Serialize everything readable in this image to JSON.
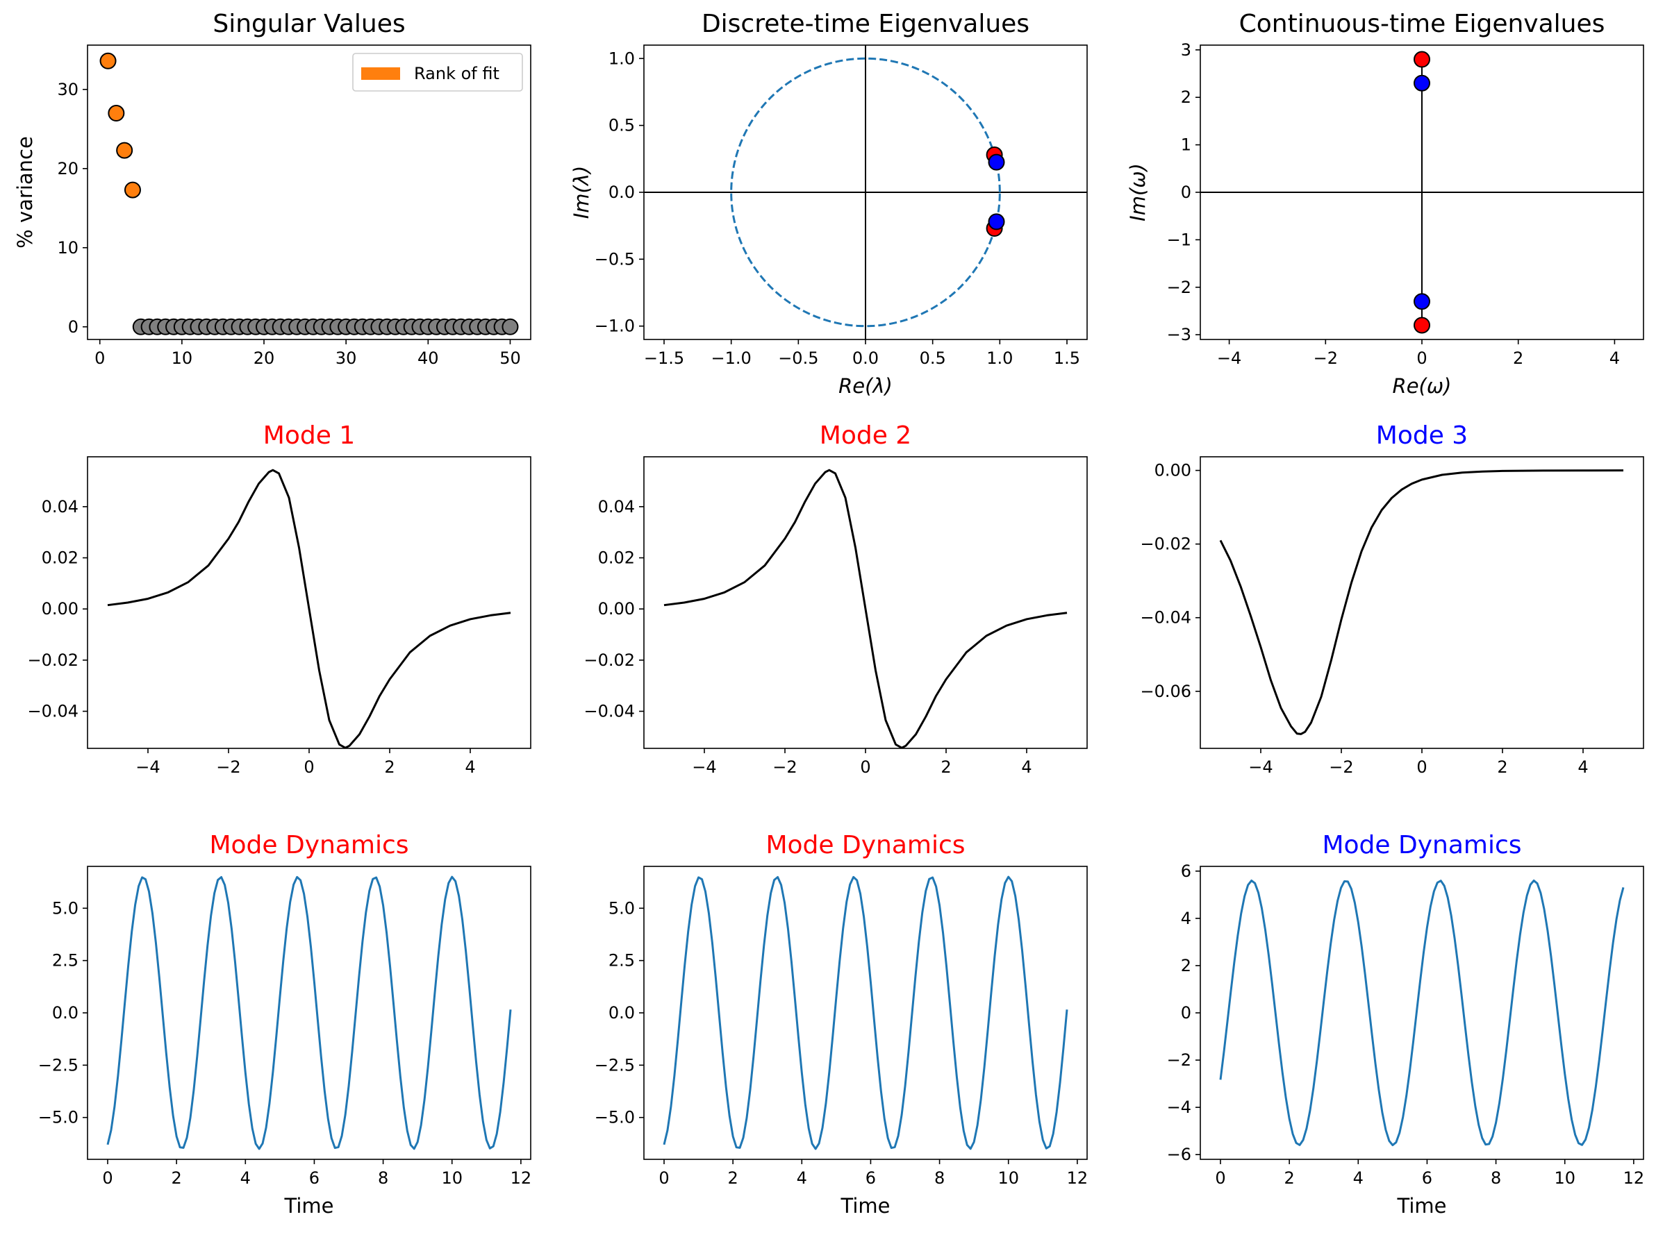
{
  "colors": {
    "orange": "#ff7f0e",
    "gray": "#808080",
    "red": "#ff0000",
    "blue": "#0000ff",
    "line_blue": "#1f77b4",
    "black": "#000000"
  },
  "chart_data": [
    {
      "id": "singular-values",
      "type": "scatter",
      "title": "Singular Values",
      "title_color": "#000000",
      "xlabel": "",
      "ylabel": "% variance",
      "xlim": [
        -1.5,
        52.5
      ],
      "ylim": [
        -1.6,
        35.6
      ],
      "xticks": [
        0,
        10,
        20,
        30,
        40,
        50
      ],
      "yticks": [
        0,
        10,
        20,
        30
      ],
      "legend": {
        "label": "Rank of fit",
        "placement": "upper right",
        "color": "#ff7f0e"
      },
      "series": [
        {
          "name": "rank-of-fit",
          "color": "#ff7f0e",
          "x": [
            1,
            2,
            3,
            4
          ],
          "y": [
            33.6,
            27.0,
            22.3,
            17.3
          ]
        },
        {
          "name": "remaining",
          "color": "#808080",
          "x": [
            5,
            6,
            7,
            8,
            9,
            10,
            11,
            12,
            13,
            14,
            15,
            16,
            17,
            18,
            19,
            20,
            21,
            22,
            23,
            24,
            25,
            26,
            27,
            28,
            29,
            30,
            31,
            32,
            33,
            34,
            35,
            36,
            37,
            38,
            39,
            40,
            41,
            42,
            43,
            44,
            45,
            46,
            47,
            48,
            49,
            50
          ],
          "y": [
            0,
            0,
            0,
            0,
            0,
            0,
            0,
            0,
            0,
            0,
            0,
            0,
            0,
            0,
            0,
            0,
            0,
            0,
            0,
            0,
            0,
            0,
            0,
            0,
            0,
            0,
            0,
            0,
            0,
            0,
            0,
            0,
            0,
            0,
            0,
            0,
            0,
            0,
            0,
            0,
            0,
            0,
            0,
            0,
            0,
            0
          ]
        }
      ]
    },
    {
      "id": "discrete-eigenvalues",
      "type": "scatter",
      "title": "Discrete-time Eigenvalues",
      "title_color": "#000000",
      "xlabel": "Re(λ)",
      "ylabel": "Im(λ)",
      "xlim": [
        -1.65,
        1.65
      ],
      "ylim": [
        -1.1,
        1.1
      ],
      "xticks": [
        -1.5,
        -1.0,
        -0.5,
        0.0,
        0.5,
        1.0,
        1.5
      ],
      "xtick_labels": [
        "−1.5",
        "−1.0",
        "−0.5",
        "0.0",
        "0.5",
        "1.0",
        "1.5"
      ],
      "yticks": [
        -1.0,
        -0.5,
        0.0,
        0.5,
        1.0
      ],
      "ytick_labels": [
        "−1.0",
        "−0.5",
        "0.0",
        "0.5",
        "1.0"
      ],
      "unit_circle": true,
      "series": [
        {
          "name": "modes-1-2",
          "color": "#ff0000",
          "x": [
            0.96,
            0.96
          ],
          "y": [
            0.28,
            -0.27
          ]
        },
        {
          "name": "mode-3",
          "color": "#0000ff",
          "x": [
            0.975,
            0.975
          ],
          "y": [
            0.225,
            -0.22
          ]
        }
      ]
    },
    {
      "id": "continuous-eigenvalues",
      "type": "scatter",
      "title": "Continuous-time Eigenvalues",
      "title_color": "#000000",
      "xlabel": "Re(ω)",
      "ylabel": "Im(ω)",
      "xlim": [
        -4.6,
        4.6
      ],
      "ylim": [
        -3.1,
        3.1
      ],
      "xticks": [
        -4,
        -2,
        0,
        2,
        4
      ],
      "xtick_labels": [
        "−4",
        "−2",
        "0",
        "2",
        "4"
      ],
      "yticks": [
        -3,
        -2,
        -1,
        0,
        1,
        2,
        3
      ],
      "ytick_labels": [
        "−3",
        "−2",
        "−1",
        "0",
        "1",
        "2",
        "3"
      ],
      "series": [
        {
          "name": "modes-1-2",
          "color": "#ff0000",
          "x": [
            0,
            0
          ],
          "y": [
            2.8,
            -2.8
          ]
        },
        {
          "name": "mode-3",
          "color": "#0000ff",
          "x": [
            0,
            0
          ],
          "y": [
            2.3,
            -2.3
          ]
        }
      ]
    },
    {
      "id": "mode-1",
      "type": "line",
      "title": "Mode 1",
      "title_color": "#ff0000",
      "xlabel": "",
      "ylabel": "",
      "xlim": [
        -5.5,
        5.5
      ],
      "ylim": [
        -0.0545,
        0.0595
      ],
      "xticks": [
        -4,
        -2,
        0,
        2,
        4
      ],
      "xtick_labels": [
        "−4",
        "−2",
        "0",
        "2",
        "4"
      ],
      "yticks": [
        -0.04,
        -0.02,
        0.0,
        0.02,
        0.04
      ],
      "ytick_labels": [
        "−0.04",
        "−0.02",
        "0.00",
        "0.02",
        "0.04"
      ],
      "series": [
        {
          "name": "mode-shape",
          "color": "#000000",
          "x": [
            -5,
            -4.5,
            -4,
            -3.5,
            -3,
            -2.5,
            -2,
            -1.75,
            -1.5,
            -1.25,
            -1,
            -0.9,
            -0.75,
            -0.5,
            -0.25,
            0,
            0.25,
            0.5,
            0.75,
            0.9,
            1,
            1.25,
            1.5,
            1.75,
            2,
            2.5,
            3,
            3.5,
            4,
            4.5,
            5
          ],
          "y": [
            0.0015,
            0.0025,
            0.004,
            0.0065,
            0.0105,
            0.017,
            0.0275,
            0.034,
            0.042,
            0.049,
            0.0535,
            0.0543,
            0.053,
            0.0435,
            0.024,
            0.0,
            -0.024,
            -0.0435,
            -0.053,
            -0.0543,
            -0.0535,
            -0.049,
            -0.042,
            -0.034,
            -0.0275,
            -0.017,
            -0.0105,
            -0.0065,
            -0.004,
            -0.0025,
            -0.0015
          ]
        }
      ]
    },
    {
      "id": "mode-2",
      "type": "line",
      "title": "Mode 2",
      "title_color": "#ff0000",
      "xlabel": "",
      "ylabel": "",
      "xlim": [
        -5.5,
        5.5
      ],
      "ylim": [
        -0.0545,
        0.0595
      ],
      "xticks": [
        -4,
        -2,
        0,
        2,
        4
      ],
      "xtick_labels": [
        "−4",
        "−2",
        "0",
        "2",
        "4"
      ],
      "yticks": [
        -0.04,
        -0.02,
        0.0,
        0.02,
        0.04
      ],
      "ytick_labels": [
        "−0.04",
        "−0.02",
        "0.00",
        "0.02",
        "0.04"
      ],
      "series": [
        {
          "name": "mode-shape",
          "color": "#000000",
          "x": [
            -5,
            -4.5,
            -4,
            -3.5,
            -3,
            -2.5,
            -2,
            -1.75,
            -1.5,
            -1.25,
            -1,
            -0.9,
            -0.75,
            -0.5,
            -0.25,
            0,
            0.25,
            0.5,
            0.75,
            0.9,
            1,
            1.25,
            1.5,
            1.75,
            2,
            2.5,
            3,
            3.5,
            4,
            4.5,
            5
          ],
          "y": [
            0.0015,
            0.0025,
            0.004,
            0.0065,
            0.0105,
            0.017,
            0.0275,
            0.034,
            0.042,
            0.049,
            0.0535,
            0.0543,
            0.053,
            0.0435,
            0.024,
            0.0,
            -0.024,
            -0.0435,
            -0.053,
            -0.0543,
            -0.0535,
            -0.049,
            -0.042,
            -0.034,
            -0.0275,
            -0.017,
            -0.0105,
            -0.0065,
            -0.004,
            -0.0025,
            -0.0015
          ]
        }
      ]
    },
    {
      "id": "mode-3",
      "type": "line",
      "title": "Mode 3",
      "title_color": "#0000ff",
      "xlabel": "",
      "ylabel": "",
      "xlim": [
        -5.5,
        5.5
      ],
      "ylim": [
        -0.0755,
        0.0037
      ],
      "xticks": [
        -4,
        -2,
        0,
        2,
        4
      ],
      "xtick_labels": [
        "−4",
        "−2",
        "0",
        "2",
        "4"
      ],
      "yticks": [
        -0.06,
        -0.04,
        -0.02,
        0.0
      ],
      "ytick_labels": [
        "−0.06",
        "−0.04",
        "−0.02",
        "0.00"
      ],
      "series": [
        {
          "name": "mode-shape",
          "color": "#000000",
          "x": [
            -5,
            -4.75,
            -4.5,
            -4.25,
            -4,
            -3.75,
            -3.5,
            -3.25,
            -3.1,
            -3,
            -2.9,
            -2.75,
            -2.5,
            -2.25,
            -2,
            -1.75,
            -1.5,
            -1.25,
            -1,
            -0.75,
            -0.5,
            -0.25,
            0,
            0.5,
            1,
            1.5,
            2,
            2.5,
            3,
            4,
            5
          ],
          "y": [
            -0.019,
            -0.0245,
            -0.0315,
            -0.0395,
            -0.048,
            -0.057,
            -0.0645,
            -0.0695,
            -0.0715,
            -0.0716,
            -0.071,
            -0.0685,
            -0.0615,
            -0.0515,
            -0.0405,
            -0.0305,
            -0.022,
            -0.0155,
            -0.0108,
            -0.0075,
            -0.0052,
            -0.0036,
            -0.0025,
            -0.0012,
            -0.0006,
            -0.0003,
            -0.00015,
            -0.0001,
            -5e-05,
            -2e-05,
            0.0
          ]
        }
      ]
    },
    {
      "id": "dynamics-1",
      "type": "line",
      "title": "Mode Dynamics",
      "title_color": "#ff0000",
      "xlabel": "Time",
      "ylabel": "",
      "xlim": [
        -0.585,
        12.285
      ],
      "ylim": [
        -7.0,
        7.0
      ],
      "xticks": [
        0,
        2,
        4,
        6,
        8,
        10,
        12
      ],
      "yticks": [
        -5.0,
        -2.5,
        0.0,
        2.5,
        5.0
      ],
      "ytick_labels": [
        "−5.0",
        "−2.5",
        "0.0",
        "2.5",
        "5.0"
      ],
      "series": [
        {
          "name": "oscillation",
          "color": "#1f77b4",
          "function": "sine",
          "t_start": 0.0,
          "t_end": 11.7,
          "samples": 118,
          "amplitude": 6.5,
          "frequency": 2.8,
          "phase": -1.32
        }
      ]
    },
    {
      "id": "dynamics-2",
      "type": "line",
      "title": "Mode Dynamics",
      "title_color": "#ff0000",
      "xlabel": "Time",
      "ylabel": "",
      "xlim": [
        -0.585,
        12.285
      ],
      "ylim": [
        -7.0,
        7.0
      ],
      "xticks": [
        0,
        2,
        4,
        6,
        8,
        10,
        12
      ],
      "yticks": [
        -5.0,
        -2.5,
        0.0,
        2.5,
        5.0
      ],
      "ytick_labels": [
        "−5.0",
        "−2.5",
        "0.0",
        "2.5",
        "5.0"
      ],
      "series": [
        {
          "name": "oscillation",
          "color": "#1f77b4",
          "function": "sine",
          "t_start": 0.0,
          "t_end": 11.7,
          "samples": 118,
          "amplitude": 6.5,
          "frequency": 2.8,
          "phase": -1.32
        }
      ]
    },
    {
      "id": "dynamics-3",
      "type": "line",
      "title": "Mode Dynamics",
      "title_color": "#0000ff",
      "xlabel": "Time",
      "ylabel": "",
      "xlim": [
        -0.585,
        12.285
      ],
      "ylim": [
        -6.2,
        6.2
      ],
      "xticks": [
        0,
        2,
        4,
        6,
        8,
        10,
        12
      ],
      "yticks": [
        -6,
        -4,
        -2,
        0,
        2,
        4,
        6
      ],
      "ytick_labels": [
        "−6",
        "−4",
        "−2",
        "0",
        "2",
        "4",
        "6"
      ],
      "series": [
        {
          "name": "oscillation",
          "color": "#1f77b4",
          "function": "sine",
          "t_start": 0.0,
          "t_end": 11.7,
          "samples": 118,
          "amplitude": 5.6,
          "frequency": 2.3,
          "phase": -0.53
        }
      ]
    }
  ]
}
